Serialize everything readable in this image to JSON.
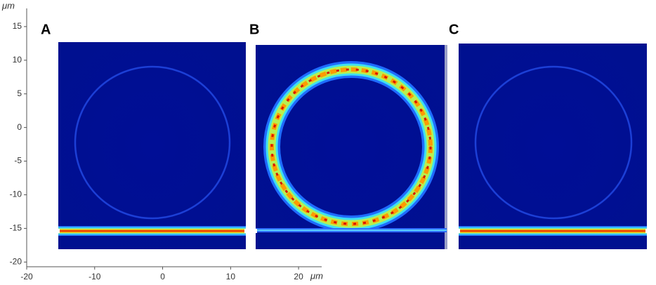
{
  "chart_data": {
    "type": "image",
    "panels": [
      "A",
      "B",
      "C"
    ],
    "x_label": "μm",
    "y_label": "μm",
    "xlim": [
      -20,
      23.4
    ],
    "ylim": [
      -20.7,
      17.7
    ],
    "xticks": [
      -20,
      -10,
      0,
      10,
      20
    ],
    "yticks": [
      -20,
      -15,
      -10,
      -5,
      0,
      5,
      10,
      15
    ]
  }
}
